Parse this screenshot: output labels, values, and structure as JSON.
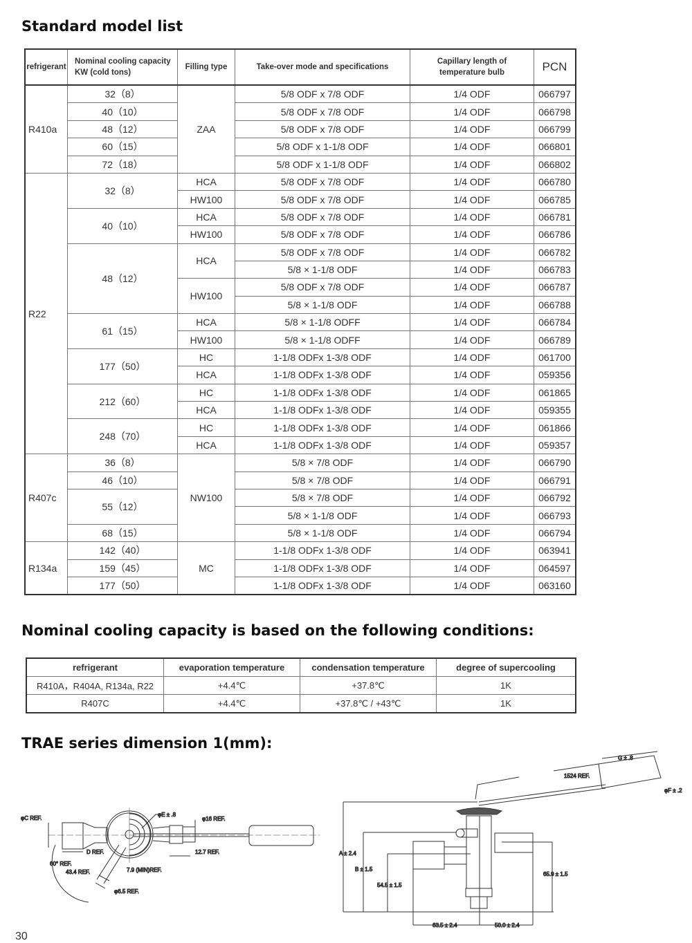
{
  "headings": {
    "model_list": "Standard model list",
    "conditions": "Nominal cooling capacity is based on the following conditions:",
    "dimension": "TRAE series dimension 1(mm):"
  },
  "model_table": {
    "headers": [
      "refrigerant",
      "Nominal cooling capacity KW (cold tons)",
      "Filling type",
      "Take-over mode and specifications",
      "Capillary length of temperature bulb",
      "PCN"
    ],
    "groups": [
      {
        "refrigerant": "R410a",
        "rows": [
          {
            "capacity": "32（8）",
            "filling": "ZAA",
            "spec": "5/8 ODF x 7/8 ODF",
            "capillary": "1/4 ODF",
            "pcn": "066797"
          },
          {
            "capacity": "40（10）",
            "filling": null,
            "spec": "5/8 ODF x 7/8 ODF",
            "capillary": "1/4 ODF",
            "pcn": "066798"
          },
          {
            "capacity": "48（12）",
            "filling": null,
            "spec": "5/8 ODF x 7/8 ODF",
            "capillary": "1/4 ODF",
            "pcn": "066799"
          },
          {
            "capacity": "60（15）",
            "filling": null,
            "spec": "5/8 ODF x 1-1/8 ODF",
            "capillary": "1/4 ODF",
            "pcn": "066801"
          },
          {
            "capacity": "72（18）",
            "filling": null,
            "spec": "5/8 ODF x 1-1/8 ODF",
            "capillary": "1/4 ODF",
            "pcn": "066802"
          }
        ]
      },
      {
        "refrigerant": "R22",
        "rows": [
          {
            "capacity": "32（8）",
            "filling": "HCA",
            "spec": "5/8 ODF x 7/8 ODF",
            "capillary": "1/4 ODF",
            "pcn": "066780"
          },
          {
            "capacity": null,
            "filling": "HW100",
            "spec": "5/8 ODF x 7/8 ODF",
            "capillary": "1/4 ODF",
            "pcn": "066785"
          },
          {
            "capacity": "40（10）",
            "filling": "HCA",
            "spec": "5/8 ODF x 7/8 ODF",
            "capillary": "1/4 ODF",
            "pcn": "066781"
          },
          {
            "capacity": null,
            "filling": "HW100",
            "spec": "5/8 ODF x 7/8 ODF",
            "capillary": "1/4 ODF",
            "pcn": "066786"
          },
          {
            "capacity": "48（12）",
            "filling": "HCA",
            "spec": "5/8 ODF x 7/8 ODF",
            "capillary": "1/4 ODF",
            "pcn": "066782"
          },
          {
            "capacity": null,
            "filling": null,
            "spec": "5/8 × 1-1/8 ODF",
            "capillary": "1/4 ODF",
            "pcn": "066783"
          },
          {
            "capacity": null,
            "filling": "HW100",
            "spec": "5/8 ODF x 7/8 ODF",
            "capillary": "1/4 ODF",
            "pcn": "066787"
          },
          {
            "capacity": null,
            "filling": null,
            "spec": "5/8 × 1-1/8 ODF",
            "capillary": "1/4 ODF",
            "pcn": "066788"
          },
          {
            "capacity": "61（15）",
            "filling": "HCA",
            "spec": "5/8 × 1-1/8 ODFF",
            "capillary": "1/4 ODF",
            "pcn": "066784"
          },
          {
            "capacity": null,
            "filling": "HW100",
            "spec": "5/8 × 1-1/8 ODFF",
            "capillary": "1/4 ODF",
            "pcn": "066789"
          },
          {
            "capacity": "177（50）",
            "filling": "HC",
            "spec": "1-1/8 ODFx 1-3/8 ODF",
            "capillary": "1/4 ODF",
            "pcn": "061700"
          },
          {
            "capacity": null,
            "filling": "HCA",
            "spec": "1-1/8 ODFx 1-3/8 ODF",
            "capillary": "1/4 ODF",
            "pcn": "059356"
          },
          {
            "capacity": "212（60）",
            "filling": "HC",
            "spec": "1-1/8 ODFx 1-3/8 ODF",
            "capillary": "1/4 ODF",
            "pcn": "061865"
          },
          {
            "capacity": null,
            "filling": "HCA",
            "spec": "1-1/8 ODFx 1-3/8 ODF",
            "capillary": "1/4 ODF",
            "pcn": "059355"
          },
          {
            "capacity": "248（70）",
            "filling": "HC",
            "spec": "1-1/8 ODFx 1-3/8 ODF",
            "capillary": "1/4 ODF",
            "pcn": "061866"
          },
          {
            "capacity": null,
            "filling": "HCA",
            "spec": "1-1/8 ODFx 1-3/8 ODF",
            "capillary": "1/4 ODF",
            "pcn": "059357"
          }
        ]
      },
      {
        "refrigerant": "R407c",
        "rows": [
          {
            "capacity": "36（8）",
            "filling": "NW100",
            "spec": "5/8 × 7/8 ODF",
            "capillary": "1/4 ODF",
            "pcn": "066790"
          },
          {
            "capacity": "46（10）",
            "filling": null,
            "spec": "5/8 × 7/8 ODF",
            "capillary": "1/4 ODF",
            "pcn": "066791"
          },
          {
            "capacity": "55（12）",
            "filling": null,
            "spec": "5/8 × 7/8 ODF",
            "capillary": "1/4 ODF",
            "pcn": "066792"
          },
          {
            "capacity": null,
            "filling": null,
            "spec": "5/8 × 1-1/8 ODF",
            "capillary": "1/4 ODF",
            "pcn": "066793"
          },
          {
            "capacity": "68（15）",
            "filling": null,
            "spec": "5/8 × 1-1/8 ODF",
            "capillary": "1/4 ODF",
            "pcn": "066794"
          }
        ]
      },
      {
        "refrigerant": "R134a",
        "rows": [
          {
            "capacity": "142（40）",
            "filling": "MC",
            "spec": "1-1/8 ODFx 1-3/8 ODF",
            "capillary": "1/4 ODF",
            "pcn": "063941"
          },
          {
            "capacity": "159（45）",
            "filling": null,
            "spec": "1-1/8 ODFx 1-3/8 ODF",
            "capillary": "1/4 ODF",
            "pcn": "064597"
          },
          {
            "capacity": "177（50）",
            "filling": null,
            "spec": "1-1/8 ODFx 1-3/8 ODF",
            "capillary": "1/4 ODF",
            "pcn": "063160"
          }
        ]
      }
    ]
  },
  "conditions_table": {
    "headers": [
      "refrigerant",
      "evaporation temperature",
      "condensation temperature",
      "degree of supercooling"
    ],
    "rows": [
      [
        "R410A，R404A, R134a, R22",
        "+4.4℃",
        "+37.8℃",
        "1K"
      ],
      [
        "R407C",
        "+4.4℃",
        "+37.8℃ / +43℃",
        "1K"
      ]
    ]
  },
  "diagram_left": {
    "labels": {
      "c": "φC REF.",
      "e": "φE ± .8",
      "p16": "φ16 REF.",
      "d": "D REF.",
      "r127": "12.7 REF.",
      "a60": "60° REF.",
      "r434": "43.4 REF.",
      "r79": "7.9 (MIN)REF.",
      "p65": "φ6.5 REF."
    }
  },
  "diagram_right": {
    "labels": {
      "g": "G ± .8",
      "r1524": "1524 REF.",
      "f": "φF ± .2",
      "a": "A ± 2.4",
      "b": "B ± 1.5",
      "h545": "54.5 ± 1.5",
      "h659": "65.9 ± 1.5",
      "w635": "63.5 ± 2.4",
      "w500": "50.0 ± 2.4"
    }
  },
  "page_number": "30"
}
